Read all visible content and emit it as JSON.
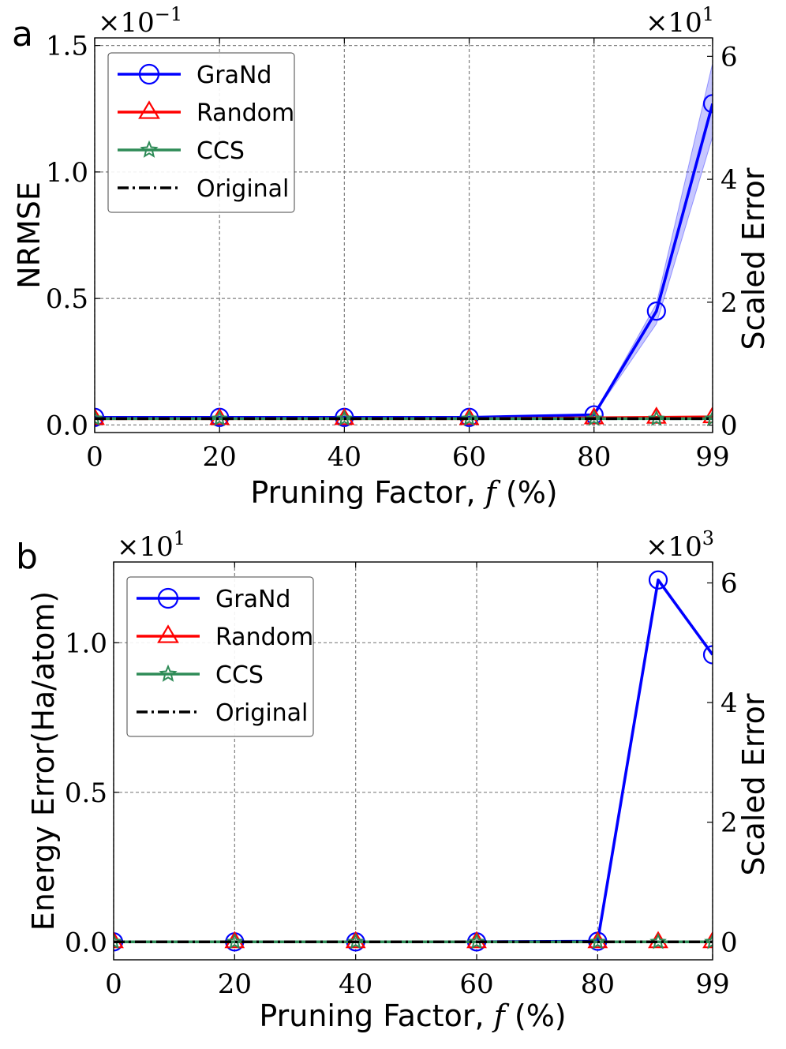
{
  "chart_data": [
    {
      "panel": "a",
      "type": "line",
      "xlabel_main": "Pruning Factor,",
      "xlabel_var": "f",
      "xlabel_unit": "(%)",
      "ylabel": "NRMSE",
      "ylabel_right": "Scaled Error",
      "y_multiplier": "×10",
      "y_multiplier_exp": "−1",
      "y_right_multiplier": "×10",
      "y_right_multiplier_exp": "1",
      "x": [
        0,
        20,
        40,
        60,
        80,
        90,
        99
      ],
      "x_ticks": [
        "0",
        "20",
        "40",
        "60",
        "80",
        "99"
      ],
      "x_tick_values": [
        0,
        20,
        40,
        60,
        80,
        99
      ],
      "xlim": [
        0,
        99
      ],
      "ylim": [
        -0.03,
        1.53
      ],
      "y_ticks": [
        "0.0",
        "0.5",
        "1.0",
        "1.5"
      ],
      "y_tick_values": [
        0.0,
        0.5,
        1.0,
        1.5
      ],
      "y_right_ticks": [
        "0",
        "2",
        "4",
        "6"
      ],
      "y_right_tick_values": [
        0,
        2,
        4,
        6
      ],
      "y_right_ylim": [
        -0.12,
        6.3
      ],
      "grid": true,
      "legend_position": "top-left",
      "series": [
        {
          "name": "GraNd",
          "color": "#0000ff",
          "marker": "circle",
          "values": [
            0.03,
            0.03,
            0.03,
            0.03,
            0.04,
            0.45,
            1.27
          ],
          "band_low": [
            0.03,
            0.03,
            0.03,
            0.03,
            0.04,
            0.4,
            1.14
          ],
          "band_high": [
            0.03,
            0.03,
            0.03,
            0.03,
            0.04,
            0.48,
            1.43
          ]
        },
        {
          "name": "Random",
          "color": "#ff0000",
          "marker": "triangle",
          "values": [
            0.025,
            0.025,
            0.025,
            0.025,
            0.028,
            0.03,
            0.032
          ]
        },
        {
          "name": "CCS",
          "color": "#2e8b57",
          "marker": "star",
          "values": [
            0.025,
            0.025,
            0.025,
            0.025,
            0.025,
            0.025,
            0.025
          ]
        },
        {
          "name": "Original",
          "color": "#000000",
          "marker": "none",
          "dash": "dashdot",
          "values": [
            0.025,
            0.025,
            0.025,
            0.025,
            0.025,
            0.025,
            0.025
          ]
        }
      ]
    },
    {
      "panel": "b",
      "type": "line",
      "xlabel_main": "Pruning Factor,",
      "xlabel_var": "f",
      "xlabel_unit": "(%)",
      "ylabel": "Energy Error(Ha/atom)",
      "ylabel_right": "Scaled Error",
      "y_multiplier": "×10",
      "y_multiplier_exp": "1",
      "y_right_multiplier": "×10",
      "y_right_multiplier_exp": "3",
      "x": [
        0,
        20,
        40,
        60,
        80,
        90,
        99
      ],
      "x_ticks": [
        "0",
        "20",
        "40",
        "60",
        "80",
        "99"
      ],
      "x_tick_values": [
        0,
        20,
        40,
        60,
        80,
        99
      ],
      "xlim": [
        0,
        99
      ],
      "ylim": [
        -0.06,
        1.27
      ],
      "y_ticks": [
        "0.0",
        "0.5",
        "1.0"
      ],
      "y_tick_values": [
        0.0,
        0.5,
        1.0
      ],
      "y_right_ticks": [
        "0",
        "2",
        "4",
        "6"
      ],
      "y_right_tick_values": [
        0,
        2,
        4,
        6
      ],
      "y_right_ylim": [
        -0.3,
        6.35
      ],
      "grid": true,
      "legend_position": "top-left",
      "series": [
        {
          "name": "GraNd",
          "color": "#0000ff",
          "marker": "circle",
          "values": [
            0.0,
            0.0,
            0.0,
            0.0,
            0.002,
            1.21,
            0.96
          ]
        },
        {
          "name": "Random",
          "color": "#ff0000",
          "marker": "triangle",
          "values": [
            0.0,
            0.0,
            0.0,
            0.0,
            0.0,
            0.0,
            0.0
          ]
        },
        {
          "name": "CCS",
          "color": "#2e8b57",
          "marker": "star",
          "values": [
            0.0,
            0.0,
            0.0,
            0.0,
            0.0,
            0.0,
            0.0
          ]
        },
        {
          "name": "Original",
          "color": "#000000",
          "marker": "none",
          "dash": "dashdot",
          "values": [
            0.0,
            0.0,
            0.0,
            0.0,
            0.0,
            0.0,
            0.0
          ]
        }
      ]
    }
  ]
}
